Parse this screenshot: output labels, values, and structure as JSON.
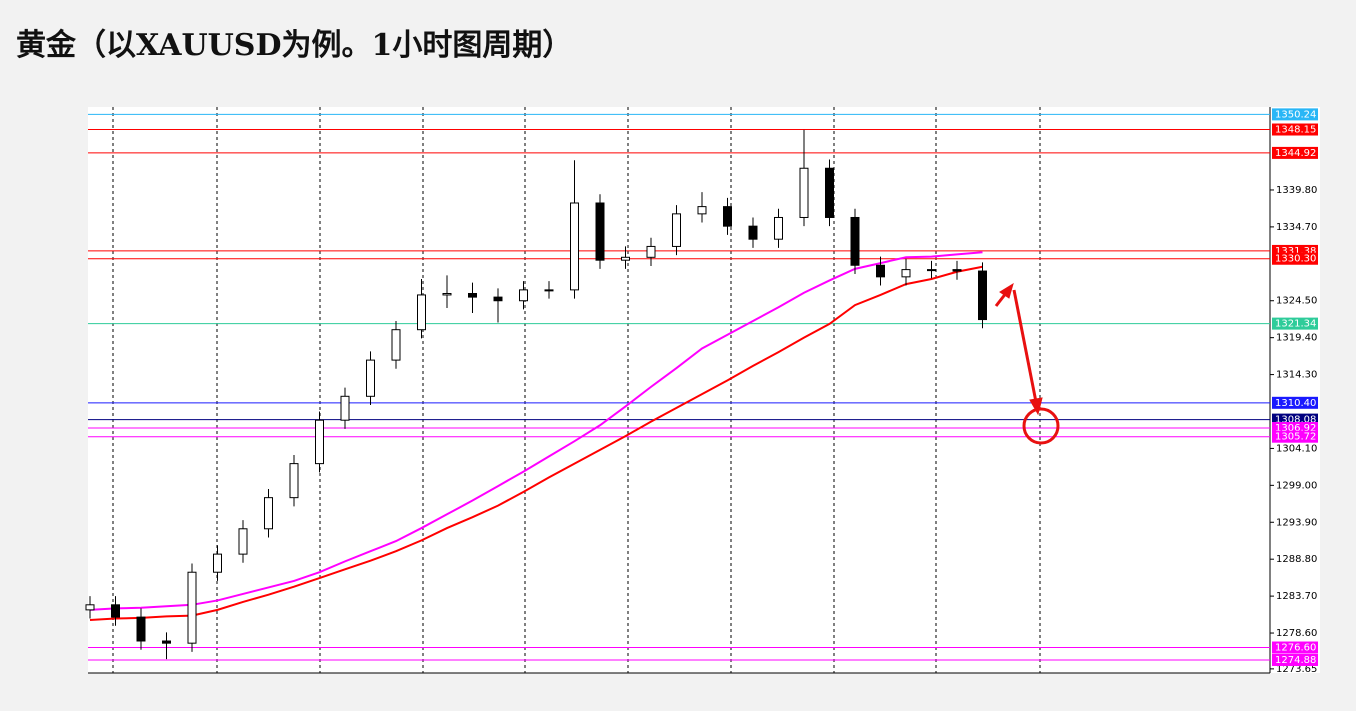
{
  "chart_data": {
    "type": "candlestick",
    "title": "黄金（以XAUUSD为例。1小时图周期）",
    "open": [
      1281.8,
      1282.5,
      1280.8,
      1277.5,
      1277.2,
      1287.0,
      1289.5,
      1293.0,
      1297.3,
      1302.0,
      1308.0,
      1311.3,
      1316.3,
      1320.5,
      1325.3,
      1325.5,
      1325.0,
      1324.5,
      1326.0,
      1326.0,
      1338.0,
      1330.1,
      1330.5,
      1332.0,
      1336.5,
      1337.5,
      1334.8,
      1333.0,
      1336.0,
      1342.8,
      1336.0,
      1329.4,
      1327.8,
      1328.8,
      1328.8,
      1328.6
    ],
    "high": [
      1283.7,
      1283.7,
      1282.0,
      1278.7,
      1288.2,
      1290.7,
      1294.2,
      1298.5,
      1303.2,
      1309.2,
      1312.5,
      1317.5,
      1321.7,
      1327.5,
      1328.0,
      1327.0,
      1326.2,
      1327.2,
      1327.2,
      1343.9,
      1339.2,
      1332.0,
      1333.2,
      1337.7,
      1339.5,
      1338.7,
      1336.0,
      1337.2,
      1348.1,
      1344.0,
      1337.2,
      1330.6,
      1330.3,
      1330.0,
      1330.0,
      1329.8
    ],
    "low": [
      1280.6,
      1279.6,
      1276.3,
      1275.0,
      1276.0,
      1285.8,
      1288.3,
      1291.8,
      1296.1,
      1300.8,
      1306.8,
      1310.1,
      1315.1,
      1319.3,
      1323.5,
      1322.8,
      1321.5,
      1323.3,
      1324.8,
      1324.8,
      1328.9,
      1328.9,
      1329.3,
      1330.8,
      1335.3,
      1333.6,
      1331.8,
      1331.8,
      1334.8,
      1334.8,
      1328.2,
      1326.6,
      1326.6,
      1327.6,
      1327.4,
      1320.7
    ],
    "close": [
      1282.5,
      1280.8,
      1277.5,
      1277.2,
      1287.0,
      1289.5,
      1293.0,
      1297.3,
      1302.0,
      1308.0,
      1311.3,
      1316.3,
      1320.5,
      1325.3,
      1325.5,
      1325.0,
      1324.5,
      1326.0,
      1326.0,
      1338.0,
      1330.1,
      1330.5,
      1332.0,
      1336.5,
      1337.5,
      1334.8,
      1333.0,
      1336.0,
      1342.8,
      1336.0,
      1329.4,
      1327.8,
      1328.8,
      1328.8,
      1328.6,
      1321.9
    ],
    "series": [
      {
        "color": "#ff00ff",
        "values": [
          1281.8,
          1282.0,
          1282.1,
          1282.3,
          1282.5,
          1283.1,
          1284.0,
          1284.9,
          1285.8,
          1287.0,
          1288.5,
          1289.9,
          1291.3,
          1293.1,
          1295.0,
          1296.9,
          1298.9,
          1300.9,
          1303.0,
          1305.1,
          1307.3,
          1309.9,
          1312.6,
          1315.2,
          1317.9,
          1319.8,
          1321.7,
          1323.6,
          1325.6,
          1327.3,
          1328.9,
          1329.7,
          1330.5,
          1330.6,
          1330.9,
          1331.2
        ]
      },
      {
        "color": "#ff0000",
        "values": [
          1280.4,
          1280.6,
          1280.7,
          1280.9,
          1281.0,
          1281.8,
          1282.9,
          1283.9,
          1285.0,
          1286.2,
          1287.4,
          1288.6,
          1289.9,
          1291.4,
          1293.1,
          1294.6,
          1296.2,
          1298.1,
          1300.1,
          1302.0,
          1303.9,
          1305.8,
          1307.8,
          1309.7,
          1311.6,
          1313.5,
          1315.5,
          1317.4,
          1319.4,
          1321.3,
          1323.9,
          1325.3,
          1326.8,
          1327.5,
          1328.5,
          1329.2
        ]
      }
    ],
    "levels": [
      {
        "value": 1350.24,
        "label": "1350.24",
        "color": "#29b6f6"
      },
      {
        "value": 1348.15,
        "label": "1348.15",
        "color": "#ff0000"
      },
      {
        "value": 1344.92,
        "label": "1344.92",
        "color": "#ff0000"
      },
      {
        "value": 1331.38,
        "label": "1331.38",
        "color": "#ff0000"
      },
      {
        "value": 1330.3,
        "label": "1330.30",
        "color": "#ff0000"
      },
      {
        "value": 1321.34,
        "label": "1321.34",
        "color": "#2ecc9a"
      },
      {
        "value": 1310.4,
        "label": "1310.40",
        "color": "#1a1aff"
      },
      {
        "value": 1308.08,
        "label": "1308.08",
        "color": "#000080"
      },
      {
        "value": 1306.92,
        "label": "1306.92",
        "color": "#ff00ff"
      },
      {
        "value": 1305.72,
        "label": "1305.72",
        "color": "#ff00ff"
      },
      {
        "value": 1276.6,
        "label": "1276.60",
        "color": "#ff00ff"
      },
      {
        "value": 1274.88,
        "label": "1274.88",
        "color": "#ff00ff"
      }
    ],
    "ylim": [
      1273.08,
      1351.26
    ],
    "yticks": [
      {
        "value": 1339.8,
        "label": "1339.80"
      },
      {
        "value": 1334.7,
        "label": "1334.70"
      },
      {
        "value": 1324.5,
        "label": "1324.50"
      },
      {
        "value": 1319.4,
        "label": "1319.40"
      },
      {
        "value": 1314.3,
        "label": "1314.30"
      },
      {
        "value": 1304.1,
        "label": "1304.10"
      },
      {
        "value": 1299,
        "label": "1299.00"
      },
      {
        "value": 1293.9,
        "label": "1293.90"
      },
      {
        "value": 1288.8,
        "label": "1288.80"
      },
      {
        "value": 1283.7,
        "label": "1283.70"
      },
      {
        "value": 1278.6,
        "label": "1278.60"
      },
      {
        "value": 1273.65,
        "label": "1273.65"
      }
    ]
  }
}
